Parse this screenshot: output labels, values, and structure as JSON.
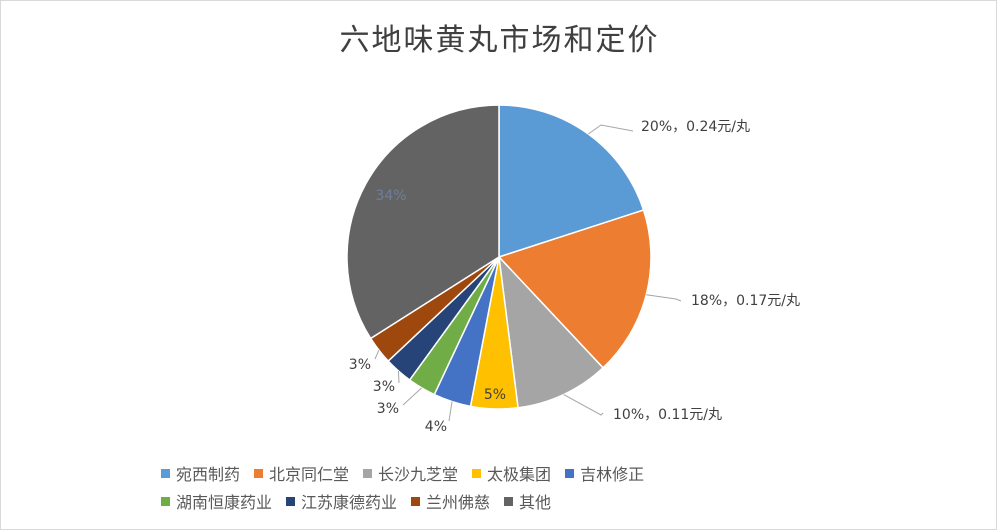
{
  "chart_data": {
    "type": "pie",
    "title": "六地味黄丸市场和定价",
    "slices": [
      {
        "name": "宛西制药",
        "value": 20,
        "label": "20%，0.24元/丸",
        "color": "#5b9bd5"
      },
      {
        "name": "北京同仁堂",
        "value": 18,
        "label": "18%，0.17元/丸",
        "color": "#ed7d31"
      },
      {
        "name": "长沙九芝堂",
        "value": 10,
        "label": "10%，0.11元/丸",
        "color": "#a5a5a5"
      },
      {
        "name": "太极集团",
        "value": 5,
        "label": "5%",
        "color": "#ffc000"
      },
      {
        "name": "吉林修正",
        "value": 4,
        "label": "4%",
        "color": "#4472c4"
      },
      {
        "name": "湖南恒康药业",
        "value": 3,
        "label": "3%",
        "color": "#70ad47"
      },
      {
        "name": "江苏康德药业",
        "value": 3,
        "label": "3%",
        "color": "#264478"
      },
      {
        "name": "兰州佛慈",
        "value": 3,
        "label": "3%",
        "color": "#9e480e"
      },
      {
        "name": "其他",
        "value": 34,
        "label": "34%",
        "color": "#636363"
      }
    ],
    "legend_position": "bottom"
  }
}
